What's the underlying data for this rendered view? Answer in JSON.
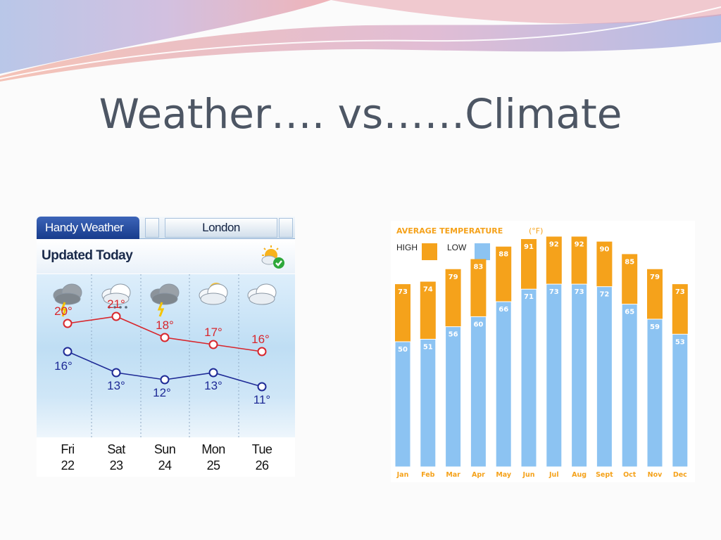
{
  "slide": {
    "title": "Weather…. vs……Climate"
  },
  "weather_widget": {
    "tabs": [
      {
        "label": "Handy Weather",
        "active": true
      },
      {
        "label": "London",
        "active": false
      }
    ],
    "updated_label": "Updated Today",
    "sync_icon": "sun-cloud-check-icon",
    "colors": {
      "high": "#d8262c",
      "low": "#1e2a96",
      "tab_active": "#1f44a0"
    },
    "days": [
      {
        "day": "Fri",
        "date": "22",
        "icon": "storm-cloud-icon",
        "high": "20°",
        "low": "16°"
      },
      {
        "day": "Sat",
        "date": "23",
        "icon": "snow-cloud-icon",
        "high": "21°",
        "low": "13°"
      },
      {
        "day": "Sun",
        "date": "24",
        "icon": "storm-cloud-icon",
        "high": "18°",
        "low": "12°"
      },
      {
        "day": "Mon",
        "date": "25",
        "icon": "partly-sunny-icon",
        "high": "17°",
        "low": "13°"
      },
      {
        "day": "Tue",
        "date": "26",
        "icon": "cloud-icon",
        "high": "16°",
        "low": "11°"
      }
    ]
  },
  "chart_data": [
    {
      "type": "line",
      "x": [
        "Fri 22",
        "Sat 23",
        "Sun 24",
        "Mon 25",
        "Tue 26"
      ],
      "series": [
        {
          "values": [
            20,
            21,
            18,
            17,
            16
          ]
        },
        {
          "values": [
            16,
            13,
            12,
            13,
            11
          ]
        }
      ],
      "ylim": [
        8,
        24
      ],
      "grid": false
    },
    {
      "type": "bar",
      "title": "AVERAGE TEMPERATURE",
      "unit": "(°F)",
      "categories": [
        "Jan",
        "Feb",
        "Mar",
        "Apr",
        "May",
        "Jun",
        "Jul",
        "Aug",
        "Sept",
        "Oct",
        "Nov",
        "Dec"
      ],
      "series": [
        {
          "name": "HIGH",
          "values": [
            73,
            74,
            79,
            83,
            88,
            91,
            92,
            92,
            90,
            85,
            79,
            73
          ],
          "color": "#f5a21b"
        },
        {
          "name": "LOW",
          "values": [
            50,
            51,
            56,
            60,
            66,
            71,
            73,
            73,
            72,
            65,
            59,
            53
          ],
          "color": "#8cc3f2"
        }
      ],
      "ylim": [
        0,
        95
      ],
      "legend": "top-left",
      "grid": false
    }
  ]
}
